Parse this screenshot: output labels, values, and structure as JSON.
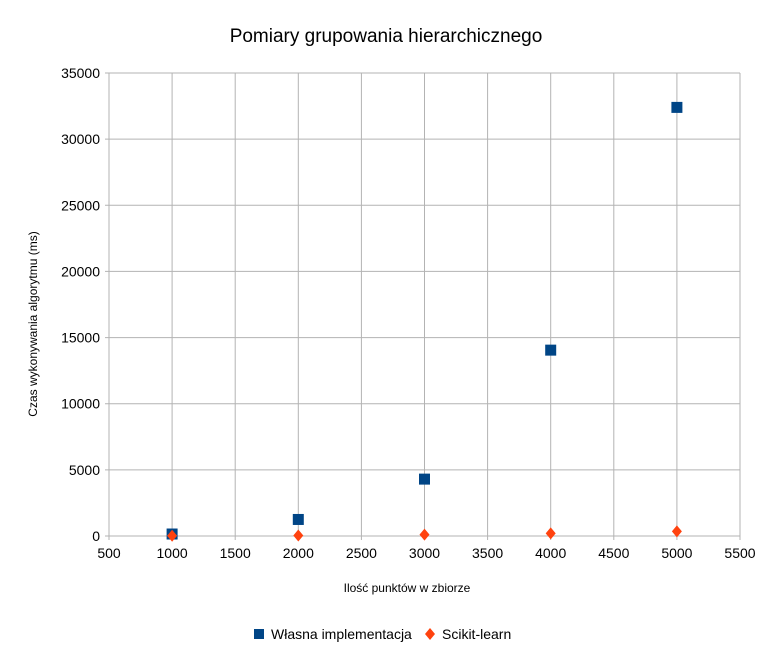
{
  "chart_data": {
    "type": "scatter",
    "title": "Pomiary grupowania hierarchicznego",
    "xlabel": "Ilość punktów w zbiorze",
    "ylabel": "Czas wykonywania algorytmu (ms)",
    "xlim": [
      500,
      5500
    ],
    "ylim": [
      0,
      35000
    ],
    "xticks": [
      500,
      1000,
      1500,
      2000,
      2500,
      3000,
      3500,
      4000,
      4500,
      5000,
      5500
    ],
    "yticks": [
      0,
      5000,
      10000,
      15000,
      20000,
      25000,
      30000,
      35000
    ],
    "grid": true,
    "legend": "bottom",
    "series": [
      {
        "name": "Własna implementacja",
        "marker": "square",
        "color": "#004586",
        "x": [
          1000,
          2000,
          3000,
          4000,
          5000
        ],
        "y": [
          150,
          1250,
          4300,
          14050,
          32400
        ]
      },
      {
        "name": "Scikit-learn",
        "marker": "diamond",
        "color": "#ff420e",
        "x": [
          1000,
          2000,
          3000,
          4000,
          5000
        ],
        "y": [
          20,
          40,
          100,
          200,
          350
        ]
      }
    ]
  }
}
